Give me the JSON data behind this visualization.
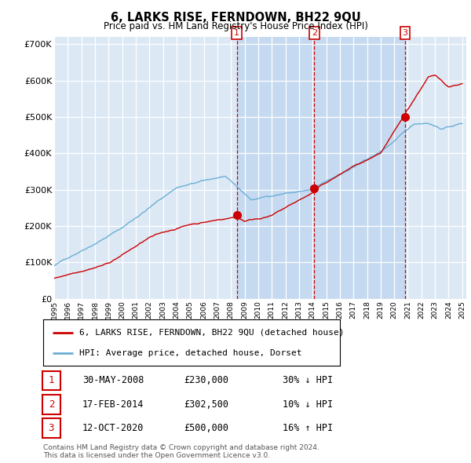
{
  "title": "6, LARKS RISE, FERNDOWN, BH22 9QU",
  "subtitle": "Price paid vs. HM Land Registry's House Price Index (HPI)",
  "plot_bg_color": "#dce9f5",
  "highlight_color": "#c5daf0",
  "ylim": [
    0,
    720000
  ],
  "yticks": [
    0,
    100000,
    200000,
    300000,
    400000,
    500000,
    600000,
    700000
  ],
  "ytick_labels": [
    "£0",
    "£100K",
    "£200K",
    "£300K",
    "£400K",
    "£500K",
    "£600K",
    "£700K"
  ],
  "hpi_color": "#6baed6",
  "price_color": "#cc0000",
  "transactions": [
    {
      "label": "1",
      "year": 2008.42,
      "price": 230000,
      "date": "30-MAY-2008",
      "pct": "30%",
      "dir": "↓"
    },
    {
      "label": "2",
      "year": 2014.12,
      "price": 302500,
      "date": "17-FEB-2014",
      "pct": "10%",
      "dir": "↓"
    },
    {
      "label": "3",
      "year": 2020.79,
      "price": 500000,
      "date": "12-OCT-2020",
      "pct": "16%",
      "dir": "↑"
    }
  ],
  "legend_line1": "6, LARKS RISE, FERNDOWN, BH22 9QU (detached house)",
  "legend_line2": "HPI: Average price, detached house, Dorset",
  "footer": "Contains HM Land Registry data © Crown copyright and database right 2024.\nThis data is licensed under the Open Government Licence v3.0."
}
